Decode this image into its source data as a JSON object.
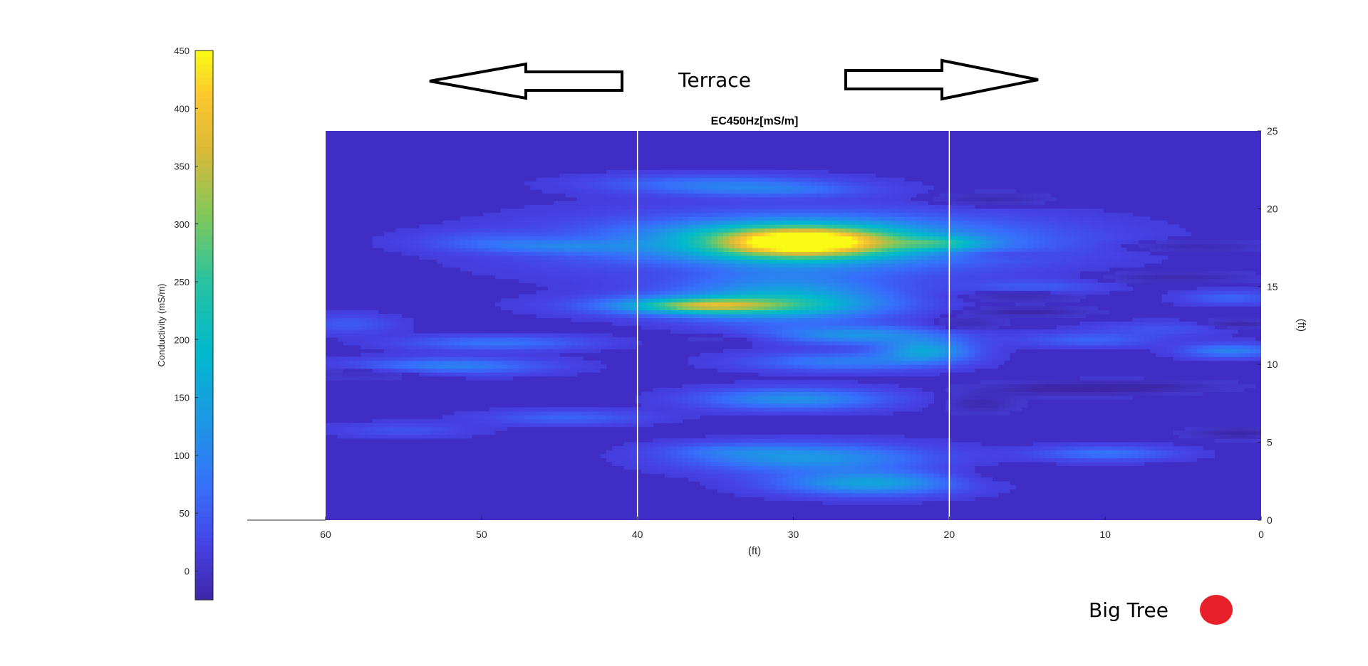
{
  "chart_data": {
    "type": "heatmap",
    "title": "EC450Hz[mS/m]",
    "xlabel": "(ft)",
    "ylabel": "(ft)",
    "x_ticks": [
      "60",
      "50",
      "40",
      "30",
      "20",
      "10",
      "0"
    ],
    "y_ticks": [
      "0",
      "5",
      "10",
      "15",
      "20",
      "25"
    ],
    "xlim": [
      60,
      0
    ],
    "ylim": [
      0,
      25
    ],
    "y_axis_side": "right",
    "panel_dividers_x": [
      40,
      20
    ],
    "background_value": 10,
    "colorbar": {
      "label": "Conductivity (mS/m)",
      "ticks": [
        "450",
        "400",
        "350",
        "300",
        "250",
        "200",
        "150",
        "100",
        "50",
        "0"
      ],
      "range": [
        -25,
        450
      ],
      "colormap": "parula"
    },
    "features": [
      {
        "x": 29.5,
        "y": 17.9,
        "value": 420,
        "wx": 4.0,
        "wy": 0.7
      },
      {
        "x": 31.0,
        "y": 17.7,
        "value": 120,
        "wx": 9.0,
        "wy": 1.3
      },
      {
        "x": 24.0,
        "y": 18.0,
        "value": 70,
        "wx": 8.0,
        "wy": 1.0
      },
      {
        "x": 30.5,
        "y": 14.2,
        "value": 160,
        "wx": 4.5,
        "wy": 1.0
      },
      {
        "x": 34.5,
        "y": 13.8,
        "value": 140,
        "wx": 5.5,
        "wy": 0.45
      },
      {
        "x": 36.0,
        "y": 13.8,
        "value": 180,
        "wx": 3.0,
        "wy": 0.3
      },
      {
        "x": 29.0,
        "y": 4.0,
        "value": 130,
        "wx": 5.0,
        "wy": 0.6
      },
      {
        "x": 25.0,
        "y": 2.4,
        "value": 150,
        "wx": 4.0,
        "wy": 0.5
      },
      {
        "x": 30.0,
        "y": 7.8,
        "value": 120,
        "wx": 4.0,
        "wy": 0.45
      },
      {
        "x": 26.0,
        "y": 11.9,
        "value": 120,
        "wx": 4.0,
        "wy": 0.4
      },
      {
        "x": 21.5,
        "y": 10.9,
        "value": 150,
        "wx": 2.0,
        "wy": 0.5
      },
      {
        "x": 27.0,
        "y": 10.2,
        "value": 90,
        "wx": 4.0,
        "wy": 0.4
      },
      {
        "x": 35.0,
        "y": 21.6,
        "value": 80,
        "wx": 5.0,
        "wy": 0.4
      },
      {
        "x": 31.0,
        "y": 21.2,
        "value": 60,
        "wx": 4.0,
        "wy": 0.3
      },
      {
        "x": 34.0,
        "y": 4.5,
        "value": 50,
        "wx": 3.0,
        "wy": 0.3
      },
      {
        "x": 20.5,
        "y": 17.8,
        "value": 120,
        "wx": 2.0,
        "wy": 0.3
      },
      {
        "x": 56.0,
        "y": 9.5,
        "value": -20,
        "wx": 3.5,
        "wy": 0.25
      },
      {
        "x": 52.0,
        "y": 9.9,
        "value": 100,
        "wx": 4.0,
        "wy": 0.35
      },
      {
        "x": 49.0,
        "y": 11.4,
        "value": 80,
        "wx": 4.0,
        "wy": 0.3
      },
      {
        "x": 45.0,
        "y": 17.6,
        "value": 70,
        "wx": 4.0,
        "wy": 0.3
      },
      {
        "x": 44.5,
        "y": 6.6,
        "value": 60,
        "wx": 3.5,
        "wy": 0.3
      },
      {
        "x": 50.0,
        "y": 18.0,
        "value": 40,
        "wx": 3.0,
        "wy": 0.4
      },
      {
        "x": 55.0,
        "y": 5.8,
        "value": 40,
        "wx": 3.0,
        "wy": 0.3
      },
      {
        "x": 58.5,
        "y": 12.6,
        "value": 50,
        "wx": 2.0,
        "wy": 0.4
      },
      {
        "x": 17.5,
        "y": 20.6,
        "value": -20,
        "wx": 2.5,
        "wy": 0.3
      },
      {
        "x": 17.0,
        "y": 17.1,
        "value": -20,
        "wx": 2.5,
        "wy": 0.2
      },
      {
        "x": 15.5,
        "y": 14.4,
        "value": -20,
        "wx": 2.5,
        "wy": 0.25
      },
      {
        "x": 15.0,
        "y": 13.4,
        "value": -25,
        "wx": 2.5,
        "wy": 0.2
      },
      {
        "x": 19.0,
        "y": 12.6,
        "value": -20,
        "wx": 1.5,
        "wy": 0.3
      },
      {
        "x": 18.0,
        "y": 7.5,
        "value": -20,
        "wx": 1.5,
        "wy": 0.4
      },
      {
        "x": 18.5,
        "y": 2.7,
        "value": -10,
        "wx": 2.0,
        "wy": 0.5
      },
      {
        "x": 12.5,
        "y": 8.4,
        "value": -20,
        "wx": 4.0,
        "wy": 0.3
      },
      {
        "x": 8.5,
        "y": 8.6,
        "value": -20,
        "wx": 4.0,
        "wy": 0.25
      },
      {
        "x": 4.5,
        "y": 17.6,
        "value": -20,
        "wx": 3.0,
        "wy": 0.25
      },
      {
        "x": 5.5,
        "y": 15.6,
        "value": -20,
        "wx": 3.0,
        "wy": 0.25
      },
      {
        "x": 1.5,
        "y": 12.6,
        "value": -25,
        "wx": 1.5,
        "wy": 0.2
      },
      {
        "x": 1.5,
        "y": 5.6,
        "value": -25,
        "wx": 2.0,
        "wy": 0.25
      },
      {
        "x": 2.0,
        "y": 10.9,
        "value": 100,
        "wx": 2.0,
        "wy": 0.3
      },
      {
        "x": 2.0,
        "y": 14.3,
        "value": 60,
        "wx": 2.0,
        "wy": 0.3
      },
      {
        "x": 10.0,
        "y": 4.3,
        "value": 80,
        "wx": 3.0,
        "wy": 0.3
      },
      {
        "x": 11.0,
        "y": 11.6,
        "value": 60,
        "wx": 3.0,
        "wy": 0.3
      },
      {
        "x": 14.5,
        "y": 15.0,
        "value": 50,
        "wx": 3.0,
        "wy": 0.3
      },
      {
        "x": 6.5,
        "y": 12.3,
        "value": 40,
        "wx": 3.0,
        "wy": 0.3
      },
      {
        "x": 37.0,
        "y": 18.5,
        "value": 30,
        "wx": 3.0,
        "wy": 0.4
      },
      {
        "x": 33.0,
        "y": 11.7,
        "value": -10,
        "wx": 3.0,
        "wy": 0.3
      },
      {
        "x": 38.0,
        "y": 16.1,
        "value": -5,
        "wx": 3.0,
        "wy": 0.4
      }
    ]
  },
  "annotations": {
    "top_label": "Terrace",
    "bottom_label": "Big Tree",
    "marker_color": "#e8202a"
  }
}
